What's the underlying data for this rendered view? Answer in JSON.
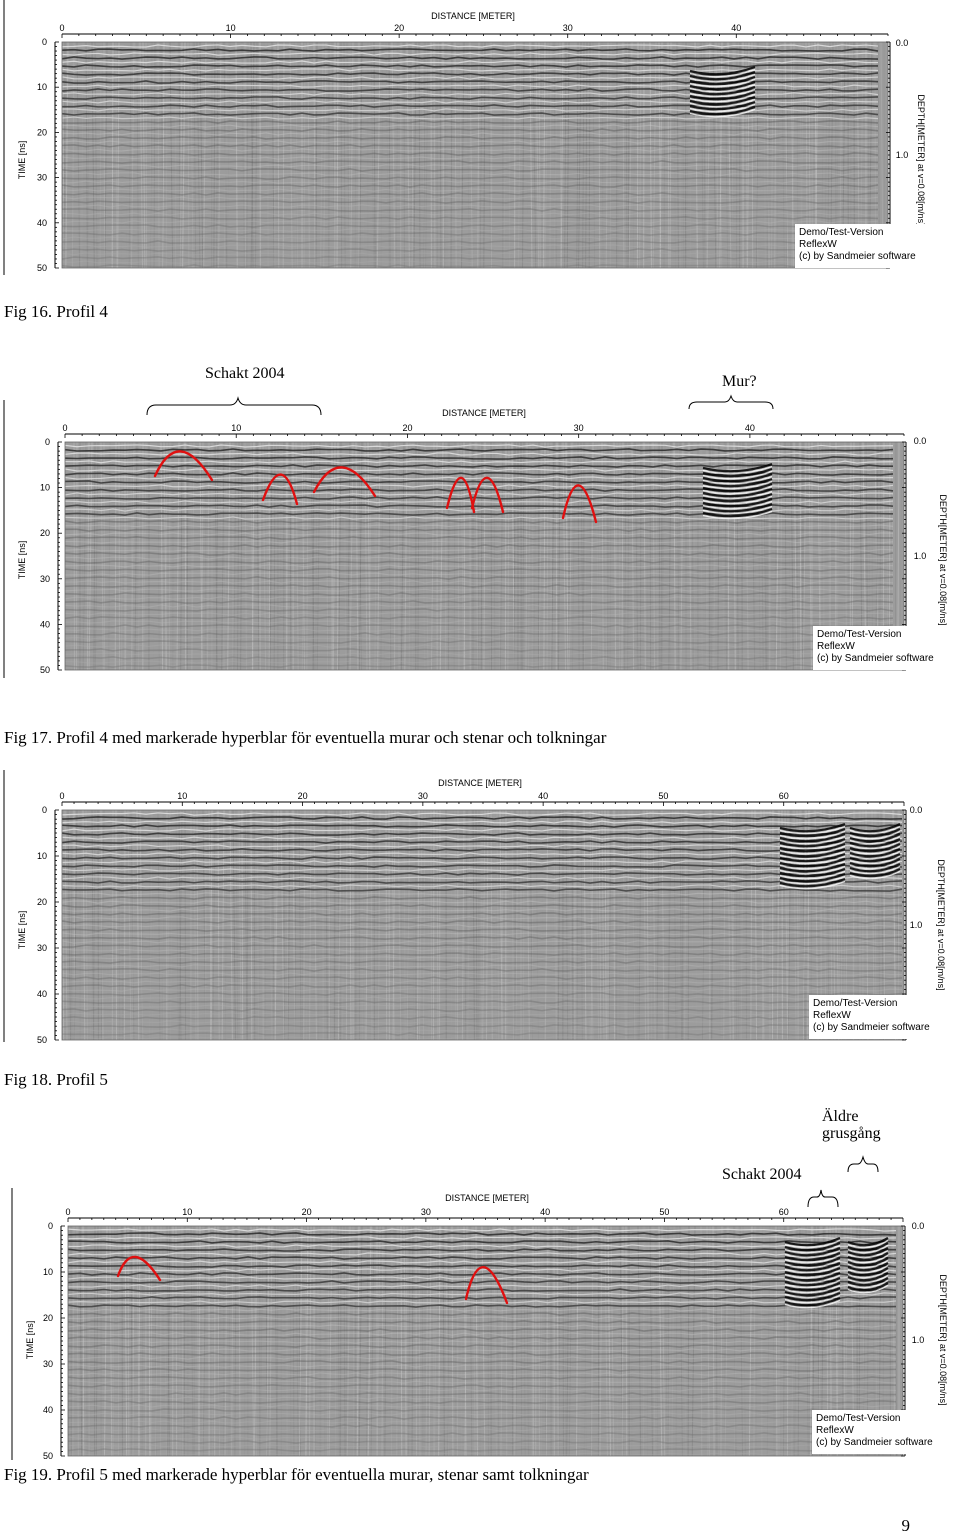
{
  "figures": [
    {
      "id": "fig16",
      "axis_title": "DISTANCE [METER]",
      "x_ticks": [
        "0",
        "10",
        "20",
        "30",
        "40"
      ],
      "time_ticks": [
        "0",
        "10",
        "20",
        "30",
        "40",
        "50"
      ],
      "time_label": "TIME [ns]",
      "depth_ticks": [
        "0.0",
        "1.0"
      ],
      "depth_label": "DEPTH[METER] at v=0.08[m/ns]",
      "watermark": [
        "Demo/Test-Version",
        "ReflexW",
        "(c) by Sandmeier software"
      ],
      "caption": "Fig 16. Profil 4"
    },
    {
      "id": "fig17",
      "axis_title": "DISTANCE [METER]",
      "x_ticks": [
        "0",
        "10",
        "20",
        "30",
        "40"
      ],
      "time_ticks": [
        "0",
        "10",
        "20",
        "30",
        "40",
        "50"
      ],
      "time_label": "TIME [ns]",
      "depth_ticks": [
        "0.0",
        "1.0"
      ],
      "depth_label": "DEPTH[METER] at v=0.08[m/ns]",
      "watermark": [
        "Demo/Test-Version",
        "ReflexW",
        "(c) by Sandmeier software"
      ],
      "annotations": [
        "Schakt 2004",
        "Mur?"
      ],
      "caption": "Fig 17. Profil 4 med markerade hyperblar för eventuella murar och stenar och tolkningar"
    },
    {
      "id": "fig18",
      "axis_title": "DISTANCE [METER]",
      "x_ticks": [
        "0",
        "10",
        "20",
        "30",
        "40",
        "50",
        "60"
      ],
      "time_ticks": [
        "0",
        "10",
        "20",
        "30",
        "40",
        "50"
      ],
      "time_label": "TIME [ns]",
      "depth_ticks": [
        "0.0",
        "1.0"
      ],
      "depth_label": "DEPTH[METER] at v=0.08[m/ns]",
      "watermark": [
        "Demo/Test-Version",
        "ReflexW",
        "(c) by Sandmeier software"
      ],
      "caption": "Fig 18. Profil 5"
    },
    {
      "id": "fig19",
      "axis_title": "DISTANCE [METER]",
      "x_ticks": [
        "0",
        "10",
        "20",
        "30",
        "40",
        "50",
        "60"
      ],
      "time_ticks": [
        "0",
        "10",
        "20",
        "30",
        "40",
        "50"
      ],
      "time_label": "TIME [ns]",
      "depth_ticks": [
        "0.0",
        "1.0"
      ],
      "depth_label": "DEPTH[METER] at v=0.08[m/ns]",
      "watermark": [
        "Demo/Test-Version",
        "ReflexW",
        "(c) by Sandmeier software"
      ],
      "annotations": [
        "Äldre",
        "grusgång",
        "Schakt 2004"
      ],
      "caption": "Fig 19. Profil 5 med markerade hyperblar för eventuella murar, stenar samt tolkningar"
    }
  ],
  "page_number": "9"
}
